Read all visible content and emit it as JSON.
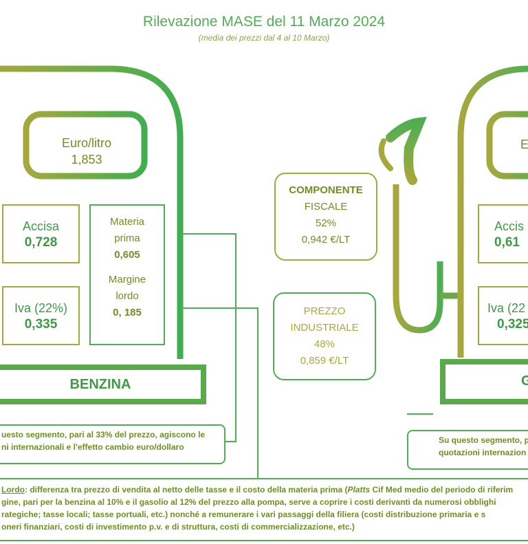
{
  "header": {
    "title": "Rilevazione MASE del 11 Marzo 2024",
    "subtitle": "(media dei prezzi dal 4 al 10 Marzo)"
  },
  "benzina": {
    "euro_litro_label": "Euro/litro",
    "euro_litro_value": "1,853",
    "accisa_label": "Accisa",
    "accisa_value": "0,728",
    "iva_label": "Iva (22%)",
    "iva_value": "0,335",
    "materia_label_1": "Materia",
    "materia_label_2": "prima",
    "materia_value": "0,605",
    "margine_label_1": "Margine",
    "margine_label_2": "lordo",
    "margine_value": "0, 185",
    "name": "BENZINA",
    "note_line1": "uesto segmento, pari al 33% del prezzo, agiscono le",
    "note_line2": "ni internazionali e l'effetto cambio euro/dollaro"
  },
  "gasolio": {
    "euro_litro_label": "E",
    "accisa_label": "Accis",
    "accisa_value": "0,61",
    "iva_label": "Iva (22",
    "iva_value": "0,325",
    "name": "G",
    "note_line1": "Su questo segmento, p",
    "note_line2": "quotazioni internazion"
  },
  "componente_fiscale": {
    "label_1": "COMPONENTE",
    "label_2": "FISCALE",
    "percent": "52%",
    "value": "0,942 €/LT"
  },
  "prezzo_industriale": {
    "label_1": "PREZZO",
    "label_2": "INDUSTRIALE",
    "percent": "48%",
    "value": "0,859 €/LT"
  },
  "footnote": {
    "term": "Lordo",
    "line1_after_term": ": differenza tra prezzo di vendita al netto delle tasse e il costo della materia prima (",
    "line1_italic": "Platts",
    "line1_end": " Cif Med medio del periodo di riferim",
    "line2": "gine, pari per la benzina al 10% e il gasolio al 12% del prezzo alla pompa, serve a coprire i costi derivanti da numerosi obblighi",
    "line3": "rategiche; tasse locali; tasse portuali, etc.) nonché a remunerare i vari passaggi della filiera (costi distribuzione primaria e s",
    "line4": "oneri finanziari, costi di investimento p.v. e di struttura, costi di commercializzazione, etc.)"
  },
  "colors": {
    "green": "#4fae52",
    "olive": "#a6a83c",
    "text_olive": "#6e8f22",
    "text_green": "#3f9a45"
  }
}
